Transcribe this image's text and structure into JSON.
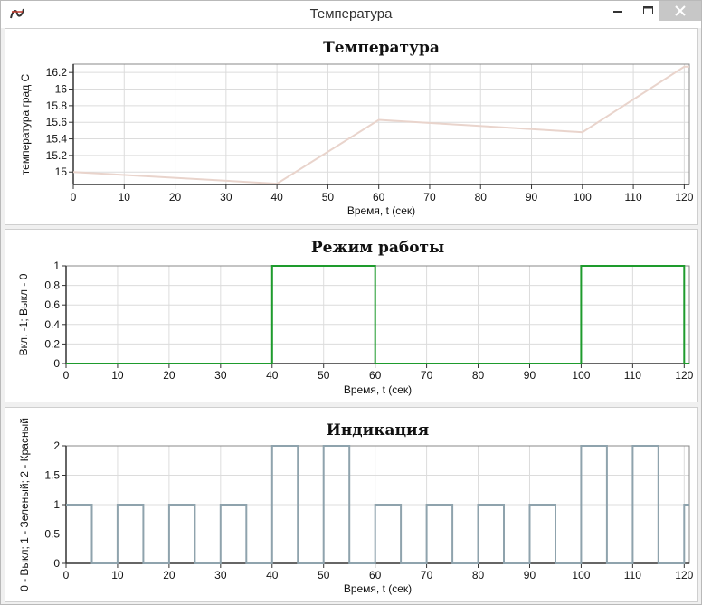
{
  "window": {
    "title": "Температура"
  },
  "colors": {
    "titlebar_bg": "#ffffff",
    "close_bg": "#c7c7c7",
    "temperature_line": "#e9d4cc",
    "mode_line": "#1e9b2d",
    "indication_line": "#8fa3ad",
    "grid": "#dcdcdc",
    "axis": "#333333"
  },
  "icons": [
    "app-icon",
    "minimize-icon",
    "maximize-icon",
    "close-icon"
  ],
  "chart_data": [
    {
      "type": "line",
      "title": "Температура",
      "xlabel": "Время, t (сек)",
      "ylabel": "температура град С",
      "xlim": [
        0,
        121
      ],
      "ylim": [
        14.85,
        16.3
      ],
      "xticks": [
        0,
        10,
        20,
        30,
        40,
        50,
        60,
        70,
        80,
        90,
        100,
        110,
        120
      ],
      "yticks": [
        15,
        15.2,
        15.4,
        15.6,
        15.8,
        16,
        16.2
      ],
      "grid": true,
      "series": [
        {
          "x": [
            0,
            40,
            60,
            100,
            120,
            121
          ],
          "y": [
            15.0,
            14.86,
            15.63,
            15.48,
            16.27,
            16.27
          ]
        }
      ]
    },
    {
      "type": "line",
      "title": "Режим работы",
      "xlabel": "Время, t (сек)",
      "ylabel": "Вкл. -1; Выкл - 0",
      "xlim": [
        0,
        121
      ],
      "ylim": [
        0,
        1
      ],
      "xticks": [
        0,
        10,
        20,
        30,
        40,
        50,
        60,
        70,
        80,
        90,
        100,
        110,
        120
      ],
      "yticks": [
        0,
        0.2,
        0.4,
        0.6,
        0.8,
        1
      ],
      "grid": true,
      "series": [
        {
          "x": [
            0,
            40,
            40,
            60,
            60,
            100,
            100,
            120,
            120,
            121
          ],
          "y": [
            0,
            0,
            1,
            1,
            0,
            0,
            1,
            1,
            0,
            0
          ]
        }
      ]
    },
    {
      "type": "line",
      "title": "Индикация",
      "xlabel": "Время, t (сек)",
      "ylabel": "0 - Выкл; 1 - Зеленый; 2 - Красный",
      "xlim": [
        0,
        121
      ],
      "ylim": [
        0,
        2
      ],
      "xticks": [
        0,
        10,
        20,
        30,
        40,
        50,
        60,
        70,
        80,
        90,
        100,
        110,
        120
      ],
      "yticks": [
        0,
        0.5,
        1,
        1.5,
        2
      ],
      "grid": true,
      "series": [
        {
          "x": [
            0,
            5,
            5,
            10,
            10,
            15,
            15,
            20,
            20,
            25,
            25,
            30,
            30,
            35,
            35,
            40,
            40,
            45,
            45,
            50,
            50,
            55,
            55,
            60,
            60,
            65,
            65,
            70,
            70,
            75,
            75,
            80,
            80,
            85,
            85,
            90,
            90,
            95,
            95,
            100,
            100,
            105,
            105,
            110,
            110,
            115,
            115,
            120,
            120,
            121
          ],
          "y": [
            1,
            1,
            0,
            0,
            1,
            1,
            0,
            0,
            1,
            1,
            0,
            0,
            1,
            1,
            0,
            0,
            2,
            2,
            0,
            0,
            2,
            2,
            0,
            0,
            1,
            1,
            0,
            0,
            1,
            1,
            0,
            0,
            1,
            1,
            0,
            0,
            1,
            1,
            0,
            0,
            2,
            2,
            0,
            0,
            2,
            2,
            0,
            0,
            1,
            1
          ]
        }
      ]
    }
  ]
}
